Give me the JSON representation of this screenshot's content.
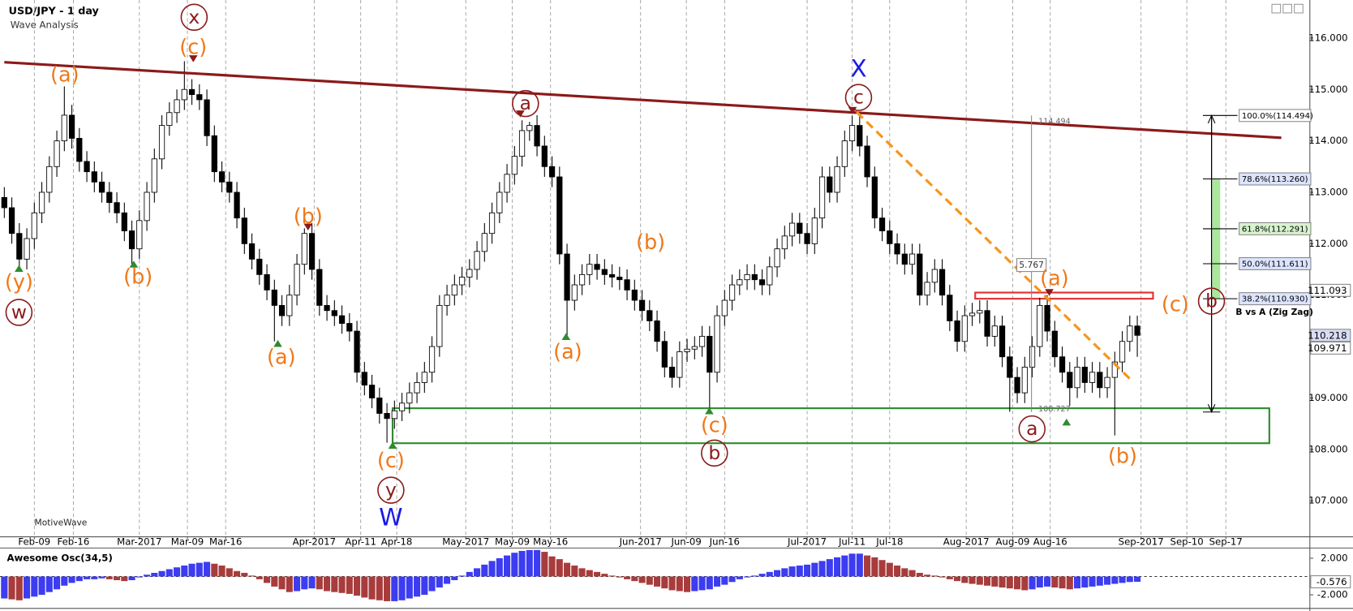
{
  "header": {
    "title": "USD/JPY - 1 day",
    "subtitle": "Wave Analysis",
    "brand": "MotiveWave"
  },
  "chart_data": [
    {
      "type": "candlestick",
      "open": [
        112.9,
        112.7,
        112.2,
        111.7,
        112.1,
        112.6,
        113.0,
        113.5,
        114.0,
        114.5,
        114.05,
        113.6,
        113.4,
        113.2,
        113.0,
        112.8,
        112.6,
        112.25,
        111.9,
        112.45,
        113.0,
        113.65,
        114.3,
        114.55,
        114.8,
        115.0,
        114.9,
        114.8,
        114.1,
        113.4,
        113.2,
        113.0,
        112.5,
        112.0,
        111.7,
        111.4,
        111.1,
        110.8,
        110.6,
        111.0,
        111.6,
        112.2,
        111.5,
        110.8,
        110.7,
        110.6,
        110.45,
        110.3,
        109.5,
        109.25,
        109.0,
        108.7,
        108.6,
        108.75,
        108.9,
        109.1,
        109.3,
        109.5,
        110.0,
        110.8,
        111.0,
        111.2,
        111.35,
        111.5,
        111.85,
        112.2,
        112.6,
        113.0,
        113.35,
        113.7,
        114.2,
        114.3,
        113.9,
        113.5,
        113.3,
        111.8,
        110.9,
        111.2,
        111.4,
        111.6,
        111.5,
        111.4,
        111.35,
        111.3,
        111.1,
        110.9,
        110.7,
        110.5,
        110.1,
        109.6,
        109.4,
        109.9,
        109.95,
        110.0,
        110.2,
        109.5,
        110.6,
        110.9,
        111.2,
        111.3,
        111.4,
        111.3,
        111.2,
        111.55,
        111.9,
        112.15,
        112.4,
        112.2,
        112.0,
        112.5,
        113.3,
        113.0,
        113.5,
        114.0,
        114.3,
        113.9,
        113.3,
        112.5,
        112.25,
        112.0,
        111.8,
        111.6,
        111.8,
        111.0,
        111.25,
        111.5,
        111.0,
        110.5,
        110.1,
        110.6,
        110.65,
        110.7,
        110.2,
        110.4,
        109.8,
        109.4,
        109.1,
        109.6,
        110.0,
        110.8,
        110.3,
        109.8,
        109.5,
        109.2,
        109.6,
        109.3,
        109.5,
        109.2,
        109.4,
        109.7,
        110.1,
        110.4
      ],
      "high": [
        113.1,
        112.9,
        112.4,
        112.3,
        112.8,
        113.2,
        113.7,
        114.2,
        115.06,
        114.7,
        114.25,
        113.8,
        113.6,
        113.4,
        113.2,
        113.0,
        112.8,
        112.45,
        112.65,
        113.2,
        113.85,
        114.5,
        114.75,
        115.0,
        115.55,
        115.2,
        115.1,
        115.0,
        114.3,
        113.6,
        113.4,
        113.2,
        112.7,
        112.2,
        111.9,
        111.6,
        111.3,
        111.0,
        111.2,
        111.8,
        112.3,
        112.4,
        111.7,
        111.0,
        110.9,
        110.8,
        110.65,
        110.5,
        109.7,
        109.45,
        109.2,
        108.9,
        108.95,
        109.1,
        109.3,
        109.5,
        109.7,
        110.2,
        111.0,
        111.2,
        111.4,
        111.55,
        111.7,
        112.05,
        112.4,
        112.8,
        113.2,
        113.55,
        113.9,
        114.4,
        114.37,
        114.5,
        114.1,
        113.7,
        113.5,
        112.0,
        111.4,
        111.6,
        111.8,
        111.8,
        111.7,
        111.6,
        111.55,
        111.5,
        111.3,
        111.1,
        110.9,
        110.7,
        110.3,
        109.8,
        110.1,
        110.15,
        110.2,
        110.4,
        110.4,
        110.8,
        111.1,
        111.4,
        111.5,
        111.6,
        111.6,
        111.5,
        111.75,
        112.1,
        112.35,
        112.6,
        112.6,
        112.4,
        112.7,
        113.5,
        113.5,
        113.7,
        114.2,
        114.49,
        114.5,
        114.1,
        113.5,
        112.7,
        112.45,
        112.2,
        112.0,
        112.0,
        112.0,
        111.45,
        111.7,
        111.7,
        111.2,
        110.7,
        110.8,
        110.85,
        110.9,
        110.9,
        110.6,
        110.6,
        110.0,
        109.6,
        109.8,
        110.2,
        110.95,
        111.0,
        110.5,
        110.0,
        109.7,
        109.8,
        109.8,
        109.7,
        109.7,
        109.6,
        109.9,
        110.3,
        110.6,
        110.6
      ],
      "low": [
        112.5,
        112.0,
        111.5,
        111.5,
        111.9,
        112.4,
        112.8,
        113.3,
        113.8,
        113.85,
        113.4,
        113.2,
        113.0,
        112.8,
        112.6,
        112.4,
        112.05,
        111.6,
        111.7,
        112.25,
        112.8,
        113.45,
        114.1,
        114.35,
        114.6,
        114.7,
        114.6,
        113.9,
        113.2,
        113.0,
        112.8,
        112.3,
        111.8,
        111.5,
        111.2,
        110.9,
        110.1,
        110.4,
        110.4,
        110.8,
        111.4,
        111.3,
        110.6,
        110.5,
        110.4,
        110.25,
        110.1,
        109.3,
        109.05,
        108.8,
        108.5,
        108.13,
        108.4,
        108.55,
        108.7,
        108.9,
        109.1,
        109.3,
        109.8,
        110.6,
        110.8,
        111.0,
        111.15,
        111.3,
        111.65,
        112.0,
        112.4,
        112.8,
        113.15,
        113.5,
        114.0,
        113.7,
        113.3,
        113.1,
        111.6,
        110.2,
        110.7,
        111.0,
        111.2,
        111.3,
        111.2,
        111.15,
        111.1,
        110.9,
        110.7,
        110.5,
        110.3,
        109.9,
        109.4,
        109.2,
        109.2,
        109.7,
        109.75,
        109.8,
        108.8,
        109.3,
        110.4,
        110.7,
        111.0,
        111.1,
        111.1,
        111.0,
        111.0,
        111.35,
        111.7,
        111.95,
        112.0,
        111.8,
        111.8,
        112.3,
        112.8,
        112.8,
        113.3,
        113.8,
        113.7,
        113.1,
        112.3,
        112.05,
        111.8,
        111.6,
        111.4,
        111.4,
        110.8,
        110.8,
        111.05,
        110.8,
        110.3,
        109.9,
        109.9,
        110.4,
        110.45,
        110.0,
        110.0,
        109.6,
        108.73,
        108.9,
        108.9,
        109.4,
        109.8,
        110.1,
        109.6,
        109.3,
        108.85,
        109.0,
        109.1,
        109.1,
        109.0,
        109.0,
        108.27,
        109.5,
        109.9,
        109.8
      ],
      "close": [
        112.7,
        112.2,
        111.7,
        112.1,
        112.6,
        113.0,
        113.5,
        114.0,
        114.5,
        114.05,
        113.6,
        113.4,
        113.2,
        113.0,
        112.8,
        112.6,
        112.25,
        111.9,
        112.45,
        113.0,
        113.65,
        114.3,
        114.55,
        114.8,
        115.0,
        114.9,
        114.8,
        114.1,
        113.4,
        113.2,
        113.0,
        112.5,
        112.0,
        111.7,
        111.4,
        111.1,
        110.8,
        110.6,
        111.0,
        111.6,
        112.2,
        111.5,
        110.8,
        110.7,
        110.6,
        110.45,
        110.3,
        109.5,
        109.25,
        109.0,
        108.7,
        108.6,
        108.75,
        108.9,
        109.1,
        109.3,
        109.5,
        110.0,
        110.8,
        111.0,
        111.2,
        111.35,
        111.5,
        111.85,
        112.2,
        112.6,
        113.0,
        113.35,
        113.7,
        114.2,
        114.3,
        113.9,
        113.5,
        113.3,
        111.8,
        110.9,
        111.2,
        111.4,
        111.6,
        111.5,
        111.4,
        111.35,
        111.3,
        111.1,
        110.9,
        110.7,
        110.5,
        110.1,
        109.6,
        109.4,
        109.9,
        109.95,
        110.0,
        110.2,
        109.5,
        110.6,
        110.9,
        111.2,
        111.3,
        111.4,
        111.3,
        111.2,
        111.55,
        111.9,
        112.15,
        112.4,
        112.2,
        112.0,
        112.5,
        113.3,
        113.0,
        113.5,
        114.0,
        114.3,
        113.9,
        113.3,
        112.5,
        112.25,
        112.0,
        111.8,
        111.6,
        111.8,
        111.0,
        111.25,
        111.5,
        111.0,
        110.5,
        110.1,
        110.6,
        110.65,
        110.7,
        110.2,
        110.4,
        109.8,
        109.4,
        109.1,
        109.6,
        110.0,
        110.8,
        110.3,
        109.8,
        109.5,
        109.2,
        109.6,
        109.3,
        109.5,
        109.2,
        109.4,
        109.7,
        110.1,
        110.4,
        110.218
      ],
      "up_color": "#ffffff",
      "down_color": "#000000",
      "xlim": [
        0,
        174
      ],
      "ylim": [
        106.3,
        116.74
      ],
      "yticks": [
        {
          "value": 107,
          "label": "107.000"
        },
        {
          "value": 108,
          "label": "108.000"
        },
        {
          "value": 109,
          "label": "109.000"
        },
        {
          "value": 110,
          "label": "110.000"
        },
        {
          "value": 111,
          "label": "111.000"
        },
        {
          "value": 112,
          "label": "112.000"
        },
        {
          "value": 113,
          "label": "113.000"
        },
        {
          "value": 114,
          "label": "114.000"
        },
        {
          "value": 115,
          "label": "115.000"
        },
        {
          "value": 116,
          "label": "116.000"
        }
      ],
      "xticks": [
        {
          "value": 4,
          "label": "Feb-09"
        },
        {
          "value": 9.2,
          "label": "Feb-16"
        },
        {
          "value": 18,
          "label": "Mar-2017"
        },
        {
          "value": 24.4,
          "label": "Mar-09"
        },
        {
          "value": 29.5,
          "label": "Mar-16"
        },
        {
          "value": 41.3,
          "label": "Apr-2017"
        },
        {
          "value": 47.5,
          "label": "Apr-11"
        },
        {
          "value": 52.3,
          "label": "Apr-18"
        },
        {
          "value": 61.5,
          "label": "May-2017"
        },
        {
          "value": 67.7,
          "label": "May-09"
        },
        {
          "value": 72.8,
          "label": "May-16"
        },
        {
          "value": 84.8,
          "label": "Jun-2017"
        },
        {
          "value": 90.9,
          "label": "Jun-09"
        },
        {
          "value": 96,
          "label": "Jun-16"
        },
        {
          "value": 107,
          "label": "Jul-2017"
        },
        {
          "value": 113,
          "label": "Jul-11"
        },
        {
          "value": 118,
          "label": "Jul-18"
        },
        {
          "value": 128.2,
          "label": "Aug-2017"
        },
        {
          "value": 134.4,
          "label": "Aug-09"
        },
        {
          "value": 139.4,
          "label": "Aug-16"
        },
        {
          "value": 151.5,
          "label": "Sep-2017"
        },
        {
          "value": 157.6,
          "label": "Sep-10"
        },
        {
          "value": 162.8,
          "label": "Sep-17"
        }
      ],
      "grid": true,
      "price_labels": [
        111.093,
        109.971
      ],
      "annotations": [
        "x",
        "(c)",
        "(a)",
        "(y)",
        "w",
        "(b)",
        "(a)",
        "(b)",
        "(c)",
        "y",
        "W",
        "a",
        "(a)",
        "(b)",
        "(c)",
        "b",
        "X",
        "c",
        "(a)",
        "a",
        "(b)",
        "(c)",
        "b"
      ],
      "trendline": {
        "color": "#8b1a1a",
        "points": [
          [
            0,
            115.53
          ],
          [
            170.2,
            114.06
          ]
        ]
      },
      "projection": {
        "color": "#f5961e",
        "points": [
          [
            113.6,
            114.56
          ],
          [
            150.1,
            109.36
          ]
        ]
      },
      "support_zone": {
        "color": "#2e8b2e",
        "xlim": [
          51.75,
          168.6
        ],
        "ylim": [
          108.12,
          108.8
        ]
      },
      "resistance_zone": {
        "color": "#e03030",
        "xlim": [
          129.4,
          153.1
        ],
        "ylim": [
          110.93,
          111.05
        ]
      },
      "measure": {
        "x": 136.9,
        "high": 114.494,
        "low": 108.727,
        "range": 5.767
      },
      "fib": {
        "x": 160.9,
        "high": 114.494,
        "low": 108.727,
        "note": "B vs A (Zig Zag)",
        "levels": [
          {
            "value": 114.494,
            "label": "100.0%(114.494)"
          },
          {
            "value": 113.26,
            "label": "78.6%(113.260)"
          },
          {
            "value": 112.291,
            "label": "61.8%(112.291)"
          },
          {
            "value": 111.611,
            "label": "50.0%(111.611)"
          },
          {
            "value": 110.93,
            "label": "38.2%(110.930)"
          }
        ]
      }
    },
    {
      "type": "histogram",
      "title": "Awesome Osc(34,5)",
      "values": [
        -2.4,
        -2.5,
        -2.6,
        -2.4,
        -2.2,
        -2.0,
        -1.7,
        -1.4,
        -1.0,
        -0.7,
        -0.5,
        -0.3,
        -0.3,
        -0.2,
        -0.3,
        -0.4,
        -0.5,
        -0.4,
        -0.1,
        0.2,
        0.4,
        0.6,
        0.8,
        1.0,
        1.2,
        1.4,
        1.5,
        1.6,
        1.4,
        1.2,
        0.9,
        0.6,
        0.4,
        0.1,
        -0.3,
        -0.7,
        -1.1,
        -1.4,
        -1.7,
        -1.6,
        -1.4,
        -1.3,
        -1.4,
        -1.6,
        -1.7,
        -1.8,
        -1.9,
        -2.1,
        -2.3,
        -2.5,
        -2.6,
        -2.7,
        -2.7,
        -2.6,
        -2.4,
        -2.2,
        -2.0,
        -1.6,
        -1.2,
        -0.8,
        -0.4,
        0.1,
        0.5,
        0.9,
        1.3,
        1.7,
        2.0,
        2.3,
        2.6,
        2.8,
        2.9,
        2.9,
        2.7,
        2.2,
        1.9,
        1.5,
        1.2,
        0.9,
        0.7,
        0.5,
        0.3,
        0.1,
        -0.1,
        -0.3,
        -0.5,
        -0.7,
        -0.9,
        -1.1,
        -1.3,
        -1.5,
        -1.6,
        -1.7,
        -1.6,
        -1.5,
        -1.4,
        -1.1,
        -0.9,
        -0.6,
        -0.3,
        -0.1,
        0.1,
        0.3,
        0.5,
        0.7,
        0.9,
        1.1,
        1.2,
        1.3,
        1.5,
        1.7,
        1.9,
        2.1,
        2.3,
        2.5,
        2.5,
        2.3,
        2.1,
        1.8,
        1.5,
        1.2,
        0.9,
        0.7,
        0.4,
        0.2,
        0.1,
        -0.1,
        -0.3,
        -0.5,
        -0.7,
        -0.8,
        -0.9,
        -1.0,
        -1.1,
        -1.2,
        -1.3,
        -1.4,
        -1.5,
        -1.4,
        -1.2,
        -1.1,
        -1.2,
        -1.3,
        -1.4,
        -1.3,
        -1.2,
        -1.1,
        -1.0,
        -0.9,
        -0.8,
        -0.7,
        -0.6,
        -0.576
      ],
      "up_color": "#3c3cf0",
      "down_color": "#a83c3c",
      "ylim": [
        -3.3,
        2.93
      ],
      "yticks": [
        {
          "value": 2,
          "label": "2.000"
        },
        {
          "value": -2,
          "label": "-2.000"
        }
      ]
    }
  ]
}
